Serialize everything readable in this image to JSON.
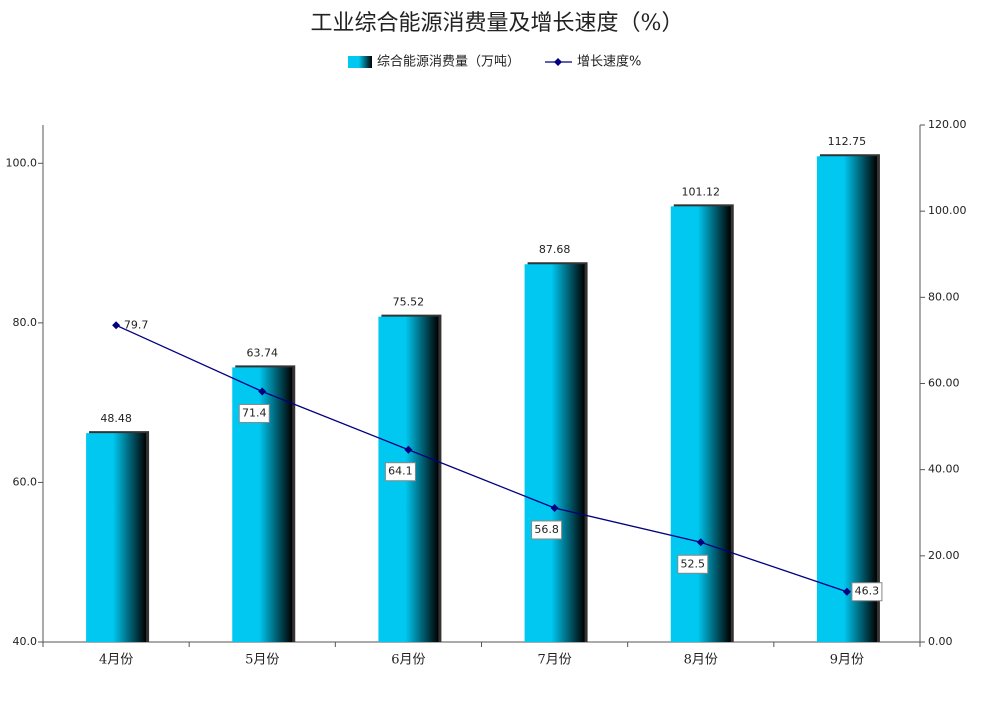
{
  "chart_data": {
    "type": "bar-line",
    "title": "工业综合能源消费量及增长速度（%）",
    "categories": [
      "4月份",
      "5月份",
      "6月份",
      "7月份",
      "8月份",
      "9月份"
    ],
    "series": [
      {
        "name": "综合能源消费量（万吨）",
        "type": "bar",
        "axis": "y2",
        "color": "#00c8f0",
        "values": [
          48.48,
          63.74,
          75.52,
          87.68,
          101.12,
          112.75
        ]
      },
      {
        "name": "增长速度%",
        "type": "line",
        "axis": "y",
        "color": "#000080",
        "values": [
          79.7,
          71.4,
          64.1,
          56.8,
          52.5,
          46.3
        ]
      }
    ],
    "ylim": [
      40,
      104.8
    ],
    "yticks": [
      {
        "value": 40,
        "label": "40.0"
      },
      {
        "value": 60,
        "label": "60.0"
      },
      {
        "value": 80,
        "label": "80.0"
      },
      {
        "value": 100,
        "label": "100.0"
      }
    ],
    "y2lim": [
      0,
      120
    ],
    "y2ticks": [
      {
        "value": 0,
        "label": "0.00"
      },
      {
        "value": 20,
        "label": "20.00"
      },
      {
        "value": 40,
        "label": "40.00"
      },
      {
        "value": 60,
        "label": "60.00"
      },
      {
        "value": 80,
        "label": "80.00"
      },
      {
        "value": 100,
        "label": "100.00"
      },
      {
        "value": 120,
        "label": "120.00"
      }
    ],
    "legend": "top"
  }
}
